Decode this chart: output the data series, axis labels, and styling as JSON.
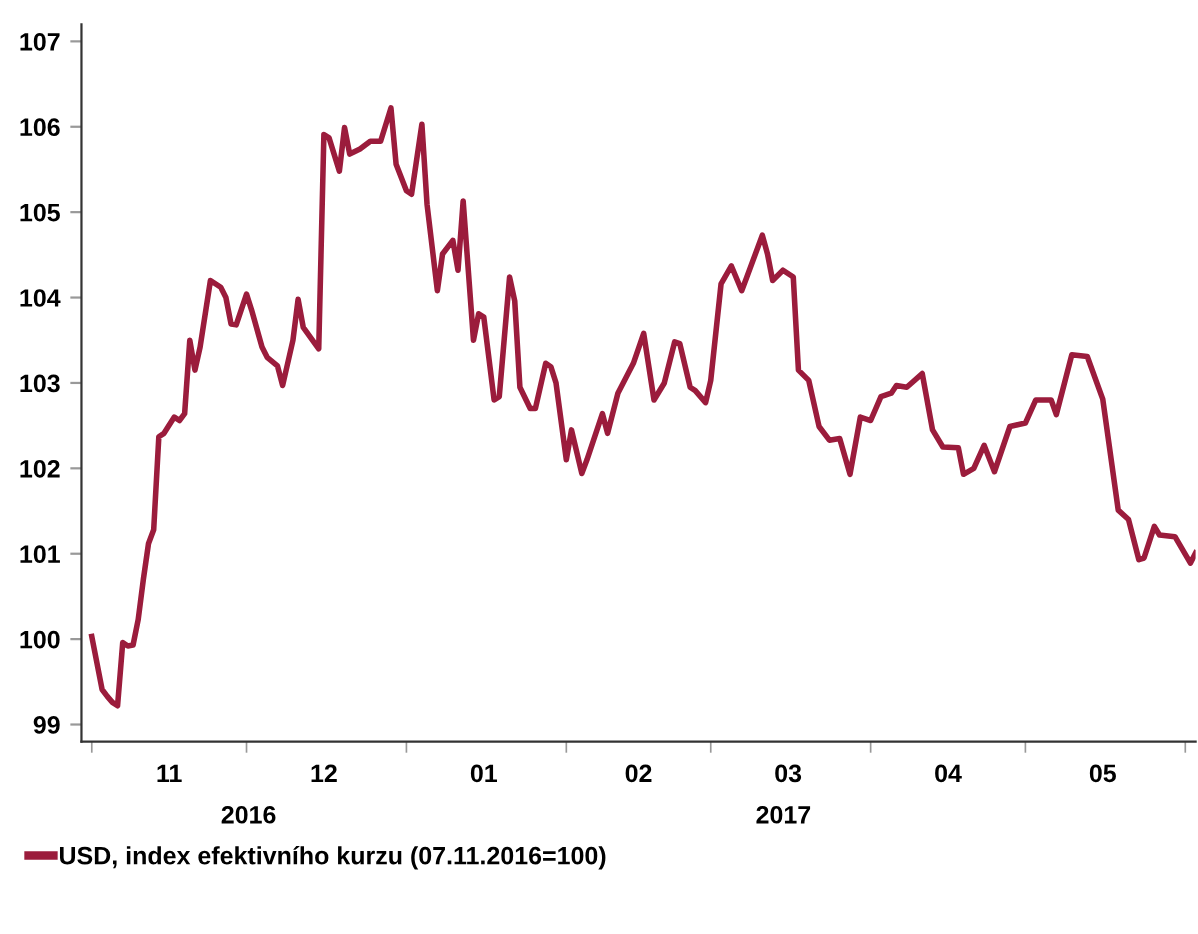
{
  "chart_data": {
    "type": "line",
    "x": [
      "2016-11-01",
      "2016-11-03",
      "2016-11-04",
      "2016-11-05",
      "2016-11-06",
      "2016-11-07",
      "2016-11-08",
      "2016-11-09",
      "2016-11-10",
      "2016-11-11",
      "2016-11-12",
      "2016-11-13",
      "2016-11-14",
      "2016-11-15",
      "2016-11-17",
      "2016-11-18",
      "2016-11-19",
      "2016-11-20",
      "2016-11-21",
      "2016-11-22",
      "2016-11-24",
      "2016-11-26",
      "2016-11-27",
      "2016-11-28",
      "2016-11-29",
      "2016-12-01",
      "2016-12-02",
      "2016-12-04",
      "2016-12-05",
      "2016-12-07",
      "2016-12-08",
      "2016-12-10",
      "2016-12-11",
      "2016-12-12",
      "2016-12-15",
      "2016-12-16",
      "2016-12-17",
      "2016-12-19",
      "2016-12-20",
      "2016-12-21",
      "2016-12-23",
      "2016-12-25",
      "2016-12-27",
      "2016-12-29",
      "2016-12-30",
      "2017-01-01",
      "2017-01-02",
      "2017-01-04",
      "2017-01-05",
      "2017-01-07",
      "2017-01-08",
      "2017-01-10",
      "2017-01-11",
      "2017-01-12",
      "2017-01-14",
      "2017-01-15",
      "2017-01-16",
      "2017-01-18",
      "2017-01-19",
      "2017-01-21",
      "2017-01-22",
      "2017-01-23",
      "2017-01-25",
      "2017-01-26",
      "2017-01-28",
      "2017-01-29",
      "2017-01-30",
      "2017-02-01",
      "2017-02-02",
      "2017-02-04",
      "2017-02-05",
      "2017-02-08",
      "2017-02-09",
      "2017-02-11",
      "2017-02-14",
      "2017-02-16",
      "2017-02-18",
      "2017-02-20",
      "2017-02-22",
      "2017-02-23",
      "2017-02-25",
      "2017-02-26",
      "2017-02-28",
      "2017-03-01",
      "2017-03-03",
      "2017-03-05",
      "2017-03-07",
      "2017-03-08",
      "2017-03-11",
      "2017-03-12",
      "2017-03-13",
      "2017-03-15",
      "2017-03-17",
      "2017-03-18",
      "2017-03-20",
      "2017-03-22",
      "2017-03-24",
      "2017-03-26",
      "2017-03-28",
      "2017-03-30",
      "2017-04-01",
      "2017-04-03",
      "2017-04-05",
      "2017-04-06",
      "2017-04-08",
      "2017-04-11",
      "2017-04-13",
      "2017-04-15",
      "2017-04-18",
      "2017-04-19",
      "2017-04-21",
      "2017-04-23",
      "2017-04-25",
      "2017-04-28",
      "2017-05-01",
      "2017-05-03",
      "2017-05-06",
      "2017-05-07",
      "2017-05-10",
      "2017-05-13",
      "2017-05-16",
      "2017-05-19",
      "2017-05-21",
      "2017-05-23",
      "2017-05-24",
      "2017-05-26",
      "2017-05-27",
      "2017-05-30",
      "2017-06-02",
      "2017-06-03"
    ],
    "series": [
      {
        "name": "USD, index efektivního kurzu (07.11.2016=100)",
        "color": "#9b1c3c",
        "values": [
          100.03,
          99.41,
          99.33,
          99.26,
          99.22,
          99.96,
          99.92,
          99.93,
          100.23,
          100.7,
          101.12,
          101.28,
          102.37,
          102.41,
          102.6,
          102.56,
          102.64,
          103.5,
          103.15,
          103.42,
          104.2,
          104.12,
          104.0,
          103.69,
          103.68,
          104.04,
          103.85,
          103.42,
          103.3,
          103.2,
          102.97,
          103.5,
          103.98,
          103.65,
          103.4,
          105.91,
          105.87,
          105.48,
          105.99,
          105.68,
          105.74,
          105.83,
          105.83,
          106.22,
          105.56,
          105.25,
          105.21,
          106.03,
          105.09,
          104.08,
          104.51,
          104.67,
          104.32,
          105.13,
          103.5,
          103.81,
          103.77,
          102.8,
          102.84,
          104.24,
          103.96,
          102.95,
          102.7,
          102.7,
          103.23,
          103.19,
          103.0,
          102.1,
          102.45,
          101.94,
          102.1,
          102.64,
          102.41,
          102.88,
          103.23,
          103.58,
          102.8,
          103.0,
          103.48,
          103.46,
          102.95,
          102.91,
          102.77,
          103.03,
          104.16,
          104.37,
          104.08,
          104.24,
          104.73,
          104.51,
          104.2,
          104.32,
          104.24,
          103.15,
          103.03,
          102.49,
          102.33,
          102.35,
          101.93,
          102.6,
          102.56,
          102.84,
          102.88,
          102.97,
          102.95,
          103.11,
          102.45,
          102.25,
          102.24,
          101.93,
          102.0,
          102.27,
          101.96,
          102.49,
          102.53,
          102.8,
          102.8,
          102.63,
          103.33,
          103.31,
          102.81,
          101.51,
          101.4,
          100.93,
          100.95,
          101.32,
          101.22,
          101.2,
          100.89,
          101.01
        ]
      }
    ],
    "xlim": [
      "2016-10-30",
      "2017-06-03"
    ],
    "xticks": [
      {
        "value": "2016-11-01",
        "label": null
      },
      {
        "value": "2016-11-16",
        "label": "11"
      },
      {
        "value": "2016-12-01",
        "label": null
      },
      {
        "value": "2016-12-16",
        "label": "12"
      },
      {
        "value": "2017-01-01",
        "label": null
      },
      {
        "value": "2017-01-16",
        "label": "01"
      },
      {
        "value": "2017-02-01",
        "label": null
      },
      {
        "value": "2017-02-15",
        "label": "02"
      },
      {
        "value": "2017-03-01",
        "label": null
      },
      {
        "value": "2017-03-16",
        "label": "03"
      },
      {
        "value": "2017-04-01",
        "label": null
      },
      {
        "value": "2017-04-16",
        "label": "04"
      },
      {
        "value": "2017-05-01",
        "label": null
      },
      {
        "value": "2017-05-16",
        "label": "05"
      },
      {
        "value": "2017-06-01",
        "label": null
      }
    ],
    "ylim": [
      98.8,
      107.2
    ],
    "yticks": [
      99,
      100,
      101,
      102,
      103,
      104,
      105,
      106,
      107
    ],
    "annotations": [
      "2016",
      "2017"
    ],
    "grid": false,
    "legend": "bottom left",
    "marker": "none",
    "line_style": "solid"
  }
}
